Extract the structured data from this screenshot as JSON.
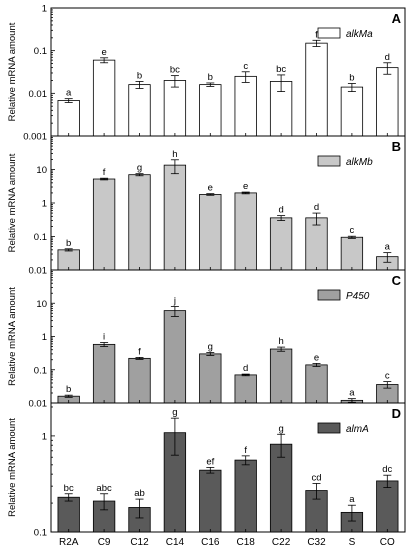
{
  "chart_data": [
    {
      "type": "bar",
      "panel": "A",
      "legend": "alkMa",
      "ylabel": "Relative mRNA amount",
      "scale": "log",
      "ylim": [
        0.001,
        1
      ],
      "yticks": [
        0.001,
        0.01,
        0.1,
        1
      ],
      "ytick_labels": [
        "0.001",
        "0.01",
        "0.1",
        "1"
      ],
      "color": "#ffffff",
      "categories": [
        "R2A",
        "C9",
        "C12",
        "C14",
        "C16",
        "C18",
        "C22",
        "C32",
        "S",
        "CO"
      ],
      "values": [
        0.0068,
        0.06,
        0.016,
        0.02,
        0.016,
        0.025,
        0.019,
        0.15,
        0.014,
        0.04
      ],
      "errors": [
        0.0007,
        0.008,
        0.003,
        0.006,
        0.0015,
        0.007,
        0.008,
        0.025,
        0.003,
        0.012
      ],
      "letters": [
        "a",
        "e",
        "b",
        "bc",
        "b",
        "c",
        "bc",
        "f",
        "b",
        "d"
      ]
    },
    {
      "type": "bar",
      "panel": "B",
      "legend": "alkMb",
      "ylabel": "Relative mRNA amount",
      "scale": "log",
      "ylim": [
        0.01,
        100
      ],
      "yticks": [
        0.01,
        0.1,
        1,
        10
      ],
      "ytick_labels": [
        "0.01",
        "0.1",
        "1",
        "10"
      ],
      "color": "#c8c8c8",
      "categories": [
        "R2A",
        "C9",
        "C12",
        "C14",
        "C16",
        "C18",
        "C22",
        "C32",
        "S",
        "CO"
      ],
      "values": [
        0.04,
        5.2,
        7.0,
        13.5,
        1.8,
        2.0,
        0.36,
        0.36,
        0.095,
        0.025
      ],
      "errors": [
        0.003,
        0.3,
        0.5,
        6.0,
        0.1,
        0.12,
        0.06,
        0.14,
        0.007,
        0.008
      ],
      "letters": [
        "b",
        "f",
        "g",
        "h",
        "e",
        "e",
        "d",
        "d",
        "c",
        "a"
      ]
    },
    {
      "type": "bar",
      "panel": "C",
      "legend": "P450",
      "ylabel": "Relative mRNA amount",
      "scale": "log",
      "ylim": [
        0.01,
        100
      ],
      "yticks": [
        0.01,
        0.1,
        1,
        10
      ],
      "ytick_labels": [
        "0.01",
        "0.1",
        "1",
        "10"
      ],
      "color": "#a0a0a0",
      "categories": [
        "R2A",
        "C9",
        "C12",
        "C14",
        "C16",
        "C18",
        "C22",
        "C32",
        "S",
        "CO"
      ],
      "values": [
        0.016,
        0.58,
        0.22,
        6.0,
        0.3,
        0.07,
        0.42,
        0.14,
        0.012,
        0.036
      ],
      "errors": [
        0.0012,
        0.08,
        0.015,
        2.0,
        0.03,
        0.004,
        0.06,
        0.015,
        0.0015,
        0.008
      ],
      "letters": [
        "b",
        "i",
        "f",
        "j",
        "g",
        "d",
        "h",
        "e",
        "a",
        "c"
      ]
    },
    {
      "type": "bar",
      "panel": "D",
      "legend": "almA",
      "ylabel": "Relative mRNA amount",
      "scale": "log",
      "ylim": [
        0.1,
        2.2
      ],
      "yticks": [
        0.1,
        1
      ],
      "ytick_labels": [
        "0.1",
        "1"
      ],
      "color": "#5a5a5a",
      "categories": [
        "R2A",
        "C9",
        "C12",
        "C14",
        "C16",
        "C18",
        "C22",
        "C32",
        "S",
        "CO"
      ],
      "values": [
        0.23,
        0.21,
        0.18,
        1.08,
        0.44,
        0.56,
        0.82,
        0.27,
        0.16,
        0.34
      ],
      "errors": [
        0.02,
        0.04,
        0.04,
        0.45,
        0.03,
        0.06,
        0.22,
        0.05,
        0.03,
        0.05
      ],
      "letters": [
        "bc",
        "abc",
        "ab",
        "g",
        "ef",
        "f",
        "g",
        "cd",
        "a",
        "dc"
      ]
    }
  ]
}
